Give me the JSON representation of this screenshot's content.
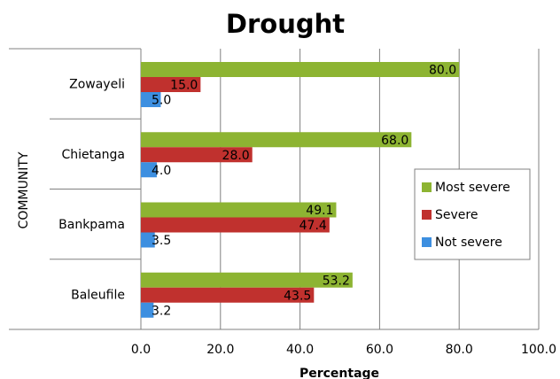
{
  "chart_data": {
    "type": "bar",
    "orientation": "horizontal",
    "title": "Drought",
    "xlabel": "Percentage",
    "ylabel": "COMMUNITY",
    "categories": [
      "Zowayeli",
      "Chietanga",
      "Bankpama",
      "Baleufile"
    ],
    "series": [
      {
        "name": "Most severe",
        "color": "#8db432",
        "values": [
          80.0,
          68.0,
          49.1,
          53.2
        ]
      },
      {
        "name": "Severe",
        "color": "#c0312e",
        "values": [
          15.0,
          28.0,
          47.4,
          43.5
        ]
      },
      {
        "name": "Not severe",
        "color": "#3d8fe0",
        "values": [
          5.0,
          4.0,
          3.5,
          3.2
        ]
      }
    ],
    "xlim": [
      0,
      100
    ],
    "xticks": [
      "0.0",
      "20.0",
      "40.0",
      "60.0",
      "80.0",
      "100.0"
    ],
    "grid": "vertical",
    "legend_position": "right"
  }
}
